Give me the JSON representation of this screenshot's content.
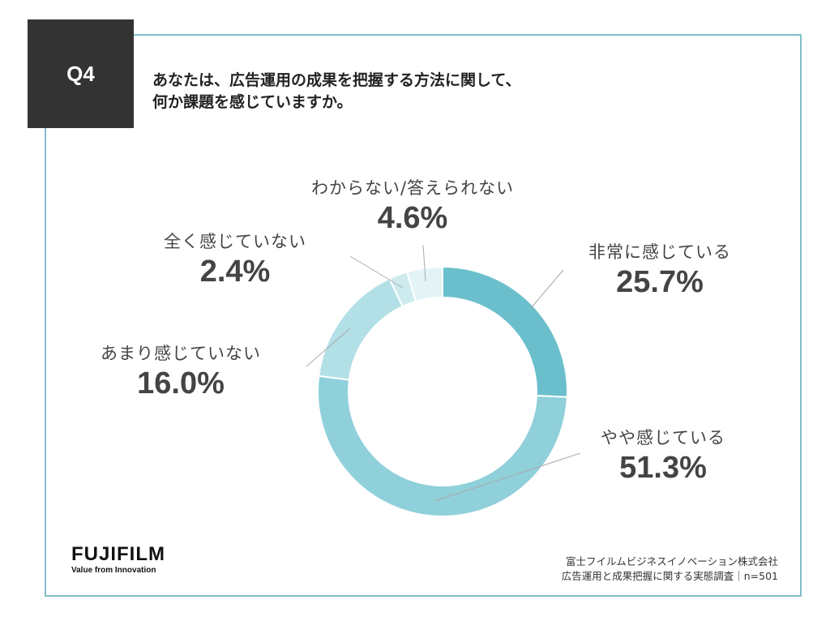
{
  "question": {
    "badge": "Q4",
    "line1": "あなたは、広告運用の成果を把握する方法に関して、",
    "line2": "何か課題を感じていますか。"
  },
  "labels": [
    {
      "name": "非常に感じている",
      "pct": "25.7%"
    },
    {
      "name": "やや感じている",
      "pct": "51.3%"
    },
    {
      "name": "あまり感じていない",
      "pct": "16.0%"
    },
    {
      "name": "全く感じていない",
      "pct": "2.4%"
    },
    {
      "name": "わからない/答えられない",
      "pct": "4.6%"
    }
  ],
  "chart_data": {
    "type": "pie",
    "variant": "donut",
    "categories": [
      "非常に感じている",
      "やや感じている",
      "あまり感じていない",
      "全く感じていない",
      "わからない/答えられない"
    ],
    "values": [
      25.7,
      51.3,
      16.0,
      2.4,
      4.6
    ],
    "colors": [
      "#6bbfcc",
      "#8fd0da",
      "#b2e0e6",
      "#cdebef",
      "#e4f4f6"
    ],
    "start": "12 o'clock, clockwise"
  },
  "logo": {
    "brand": "FUJIFILM",
    "tagline": "Value from Innovation"
  },
  "source": {
    "line1": "富士フイルムビジネスイノベーション株式会社",
    "line2": "広告運用と成果把握に関する実態調査｜n=501"
  }
}
